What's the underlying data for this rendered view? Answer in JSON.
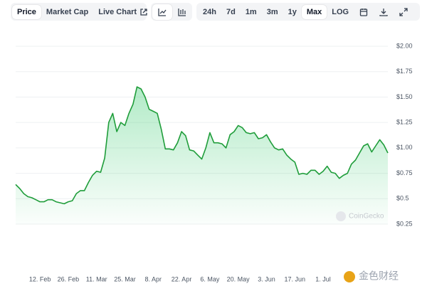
{
  "toolbar": {
    "views": [
      "Price",
      "Market Cap",
      "Live Chart"
    ],
    "ranges": [
      "24h",
      "7d",
      "1m",
      "3m",
      "1y",
      "Max"
    ],
    "scale": "LOG"
  },
  "watermark": "CoinGecko",
  "source_logo": "金色财经",
  "chart_data": {
    "type": "area",
    "color": "#1f9d3a",
    "grid": true,
    "categories": [
      null,
      null,
      null,
      null,
      null,
      null,
      "12. Feb",
      null,
      null,
      null,
      null,
      null,
      null,
      "26. Feb",
      null,
      null,
      null,
      null,
      null,
      null,
      "11. Mar",
      null,
      null,
      null,
      null,
      null,
      null,
      "25. Mar",
      null,
      null,
      null,
      null,
      null,
      null,
      "8. Apr",
      null,
      null,
      null,
      null,
      null,
      null,
      "22. Apr",
      null,
      null,
      null,
      null,
      null,
      null,
      "6. May",
      null,
      null,
      null,
      null,
      null,
      null,
      "20. May",
      null,
      null,
      null,
      null,
      null,
      null,
      "3. Jun",
      null,
      null,
      null,
      null,
      null,
      null,
      "17. Jun",
      null,
      null,
      null,
      null,
      null,
      null,
      "1. Jul",
      null,
      null,
      null,
      null,
      null,
      null,
      null,
      null,
      null,
      null,
      null,
      null,
      null,
      null,
      null,
      null
    ],
    "values": [
      0.64,
      0.6,
      0.55,
      0.52,
      0.51,
      0.49,
      0.47,
      0.47,
      0.49,
      0.49,
      0.47,
      0.46,
      0.45,
      0.47,
      0.48,
      0.55,
      0.58,
      0.58,
      0.66,
      0.73,
      0.77,
      0.76,
      0.9,
      1.25,
      1.34,
      1.16,
      1.25,
      1.22,
      1.34,
      1.43,
      1.6,
      1.58,
      1.5,
      1.38,
      1.36,
      1.34,
      1.18,
      0.99,
      0.99,
      0.98,
      1.05,
      1.16,
      1.12,
      0.98,
      0.97,
      0.93,
      0.89,
      1.0,
      1.15,
      1.05,
      1.05,
      1.04,
      1.0,
      1.13,
      1.16,
      1.22,
      1.2,
      1.15,
      1.14,
      1.15,
      1.09,
      1.1,
      1.13,
      1.06,
      1.0,
      0.98,
      0.99,
      0.93,
      0.89,
      0.86,
      0.74,
      0.75,
      0.74,
      0.78,
      0.78,
      0.74,
      0.77,
      0.82,
      0.76,
      0.75,
      0.7,
      0.73,
      0.75,
      0.84,
      0.88,
      0.95,
      1.02,
      1.04,
      0.96,
      1.02,
      1.08,
      1.03,
      0.95
    ],
    "ylim": [
      0.25,
      2.0
    ],
    "yticks": [
      {
        "value": 0.25,
        "label": "$0.25"
      },
      {
        "value": 0.5,
        "label": "$0.5"
      },
      {
        "value": 0.75,
        "label": "$0.75"
      },
      {
        "value": 1,
        "label": "$1.00"
      },
      {
        "value": 1.25,
        "label": "$1.25"
      },
      {
        "value": 1.5,
        "label": "$1.50"
      },
      {
        "value": 1.75,
        "label": "$1.75"
      },
      {
        "value": 2,
        "label": "$2.00"
      }
    ]
  }
}
